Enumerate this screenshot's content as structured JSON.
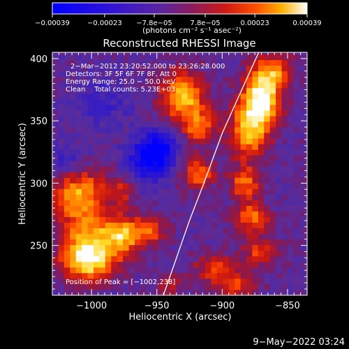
{
  "chart_data": {
    "type": "heatmap",
    "title": "Reconstructed RHESSI Image",
    "xlabel": "Heliocentric X (arcsec)",
    "ylabel": "Heliocentric Y (arcsec)",
    "xlim": [
      -1030,
      -835
    ],
    "ylim": [
      210,
      405
    ],
    "x_ticks": [
      -1000,
      -950,
      -900,
      -850
    ],
    "y_ticks": [
      250,
      300,
      350,
      400
    ],
    "x_tick_labels": [
      "−1000",
      "−950",
      "−900",
      "−850"
    ],
    "y_tick_labels": [
      "250",
      "300",
      "350",
      "400"
    ],
    "colorbar": {
      "min": -0.00039,
      "max": 0.00039,
      "tick_values": [
        -0.00039,
        -0.00023,
        -7.8e-05,
        7.8e-05,
        0.00023,
        0.00039
      ],
      "tick_labels": [
        "−0.00039",
        "−0.00023",
        "−7.8e−05",
        "7.8e−05",
        "0.00023",
        "0.00039"
      ],
      "unit_label": "(photons cm⁻² s⁻¹ asec⁻²)"
    },
    "info_lines": [
      "2−Mar−2012 23:20:52.000 to 23:26:28.000",
      "Detectors: 3F 5F 6F 7F 8F, Att 0",
      "Energy Range: 25.0 − 50.0 keV",
      "Clean    Total counts: 5.23E+03"
    ],
    "peak_label": "Position of Peak = [−1002,238]",
    "peak": {
      "x": -1002,
      "y": 238
    },
    "limb_curve": {
      "x": [
        -945,
        -935,
        -925,
        -914,
        -900,
        -885,
        -872
      ],
      "y": [
        210,
        240,
        270,
        300,
        340,
        375,
        405
      ]
    },
    "grid": false,
    "hot_spots": [
      {
        "x": -1003,
        "y": 238,
        "intensity": 1.0,
        "sx": 14,
        "sy": 11
      },
      {
        "x": -1010,
        "y": 290,
        "intensity": 0.75,
        "sx": 14,
        "sy": 16
      },
      {
        "x": -995,
        "y": 259,
        "intensity": 0.55,
        "sx": 18,
        "sy": 10
      },
      {
        "x": -975,
        "y": 258,
        "intensity": 0.5,
        "sx": 9,
        "sy": 12
      },
      {
        "x": -955,
        "y": 262,
        "intensity": 0.45,
        "sx": 9,
        "sy": 8
      },
      {
        "x": -978,
        "y": 294,
        "intensity": 0.35,
        "sx": 8,
        "sy": 8
      },
      {
        "x": -930,
        "y": 370,
        "intensity": 0.8,
        "sx": 12,
        "sy": 14
      },
      {
        "x": -917,
        "y": 345,
        "intensity": 0.55,
        "sx": 9,
        "sy": 9
      },
      {
        "x": -870,
        "y": 368,
        "intensity": 1.0,
        "sx": 10,
        "sy": 16
      },
      {
        "x": -880,
        "y": 342,
        "intensity": 0.7,
        "sx": 10,
        "sy": 16
      },
      {
        "x": -860,
        "y": 390,
        "intensity": 0.5,
        "sx": 10,
        "sy": 10
      },
      {
        "x": -918,
        "y": 308,
        "intensity": 0.55,
        "sx": 9,
        "sy": 9
      },
      {
        "x": -883,
        "y": 300,
        "intensity": 0.55,
        "sx": 8,
        "sy": 9
      },
      {
        "x": -877,
        "y": 273,
        "intensity": 0.6,
        "sx": 9,
        "sy": 8
      },
      {
        "x": -870,
        "y": 245,
        "intensity": 0.45,
        "sx": 10,
        "sy": 9
      },
      {
        "x": -905,
        "y": 232,
        "intensity": 0.45,
        "sx": 12,
        "sy": 8
      },
      {
        "x": -890,
        "y": 217,
        "intensity": 0.45,
        "sx": 12,
        "sy": 6
      },
      {
        "x": -940,
        "y": 218,
        "intensity": 0.3,
        "sx": 8,
        "sy": 6
      }
    ],
    "cold_spots": [
      {
        "x": -955,
        "y": 318,
        "intensity": 0.6,
        "sx": 12,
        "sy": 12
      },
      {
        "x": -948,
        "y": 332,
        "intensity": 0.35,
        "sx": 10,
        "sy": 8
      },
      {
        "x": -1018,
        "y": 316,
        "intensity": 0.3,
        "sx": 10,
        "sy": 10
      },
      {
        "x": -990,
        "y": 365,
        "intensity": 0.2,
        "sx": 15,
        "sy": 15
      }
    ]
  },
  "footer": {
    "timestamp": "9−May−2022 03:24"
  }
}
